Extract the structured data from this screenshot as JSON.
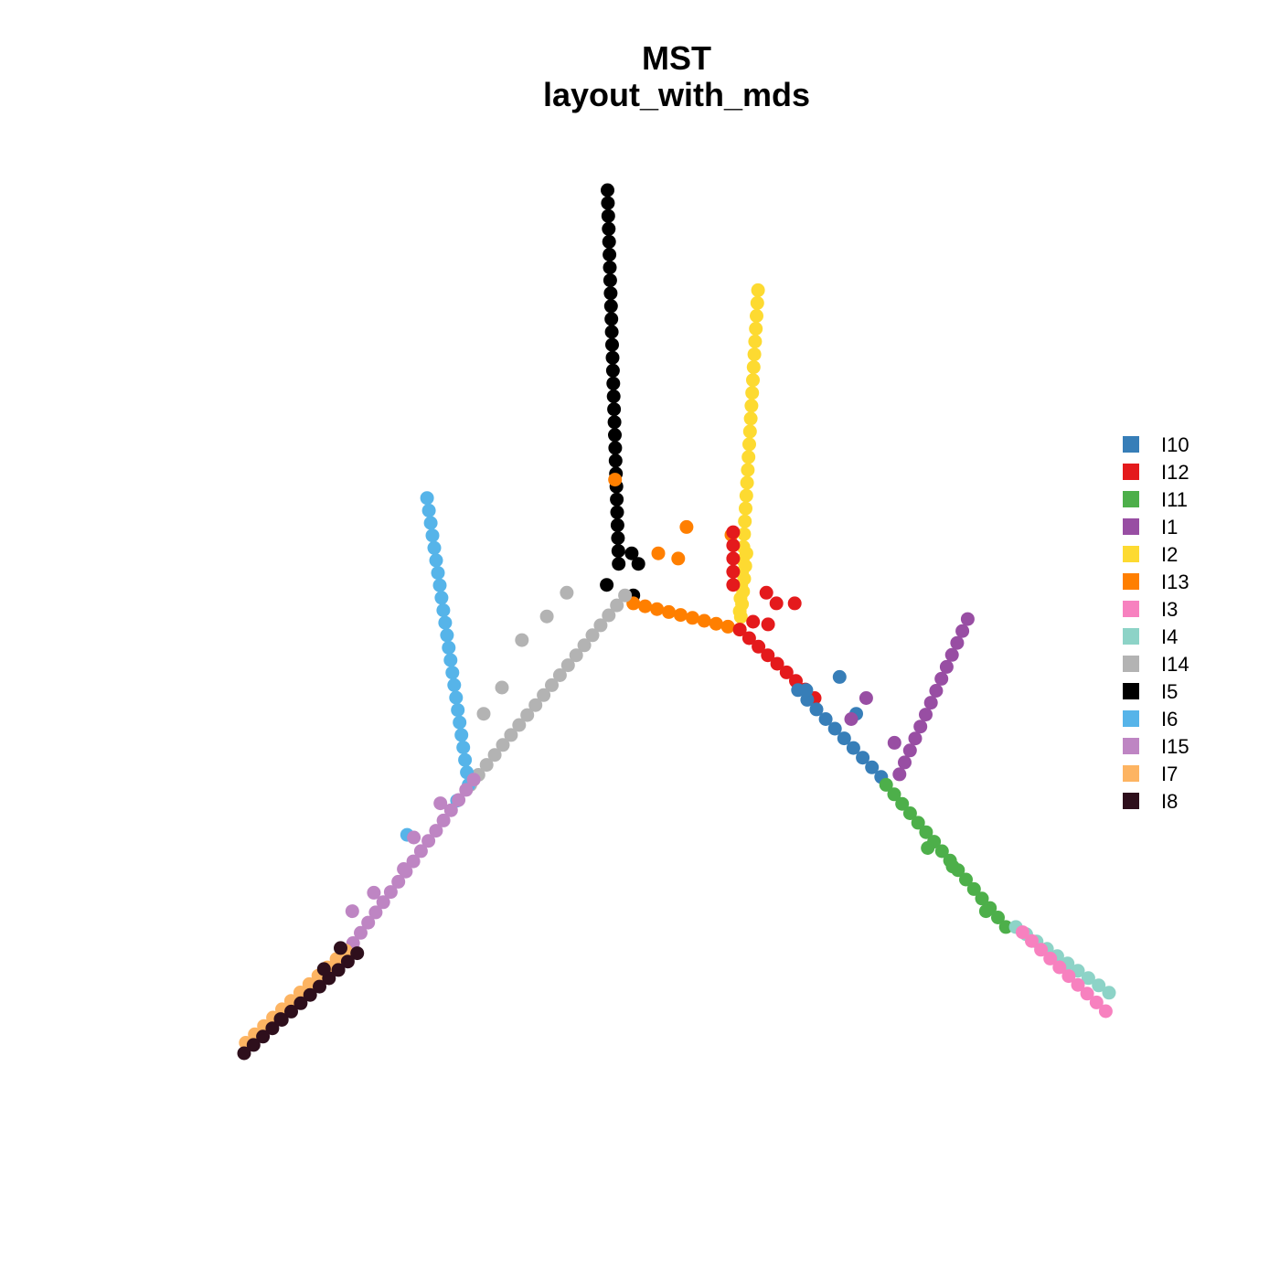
{
  "title_line1": "MST",
  "title_line2": "layout_with_mds",
  "chart_data": {
    "type": "scatter",
    "title": "MST layout_with_mds",
    "axes_visible": false,
    "grid": false,
    "legend_position": "right",
    "legend": [
      {
        "label": "I10",
        "color": "#377EB8"
      },
      {
        "label": "I12",
        "color": "#E41A1C"
      },
      {
        "label": "I11",
        "color": "#4DAF4A"
      },
      {
        "label": "I1",
        "color": "#984EA3"
      },
      {
        "label": "I2",
        "color": "#FDDA31"
      },
      {
        "label": "I13",
        "color": "#FF7F00"
      },
      {
        "label": "I3",
        "color": "#F781BF"
      },
      {
        "label": "I4",
        "color": "#8DD3C7"
      },
      {
        "label": "I14",
        "color": "#B3B3B3"
      },
      {
        "label": "I5",
        "color": "#000000"
      },
      {
        "label": "I6",
        "color": "#56B4E9"
      },
      {
        "label": "I15",
        "color": "#BE85C3"
      },
      {
        "label": "I7",
        "color": "#FDB462"
      },
      {
        "label": "I8",
        "color": "#2E0F1C"
      }
    ],
    "edge_color": "#BEBEBE",
    "series": [
      {
        "label": "I5",
        "segments": [
          [
            [
              -0.095,
              1.9
            ],
            [
              -0.028,
              0.48
            ]
          ]
        ],
        "branch_points": [
          [
            -0.1,
            0.4
          ],
          [
            0.06,
            0.36
          ],
          [
            0.09,
            0.48
          ],
          [
            0.05,
            0.52
          ]
        ]
      },
      {
        "label": "I2",
        "segments": [
          [
            [
              0.81,
              1.52
            ],
            [
              0.7,
              0.3
            ]
          ],
          [
            [
              0.74,
              0.52
            ],
            [
              0.7,
              0.23
            ]
          ]
        ]
      },
      {
        "label": "I13",
        "segments": [
          [
            [
              0.06,
              0.33
            ],
            [
              0.7,
              0.23
            ]
          ]
        ],
        "branch_points": [
          [
            0.38,
            0.62
          ],
          [
            0.21,
            0.52
          ],
          [
            0.65,
            0.59
          ],
          [
            -0.05,
            0.8
          ],
          [
            0.33,
            0.5
          ]
        ]
      },
      {
        "label": "I12",
        "segments": [
          [
            [
              0.7,
              0.23
            ],
            [
              1.15,
              -0.03
            ]
          ],
          [
            [
              0.66,
              0.6
            ],
            [
              0.66,
              0.4
            ]
          ]
        ],
        "branch_points": [
          [
            0.86,
            0.37
          ],
          [
            0.92,
            0.33
          ],
          [
            1.03,
            0.33
          ],
          [
            0.78,
            0.26
          ],
          [
            0.87,
            0.25
          ]
        ]
      },
      {
        "label": "I10",
        "segments": [
          [
            [
              1.05,
              0.0
            ],
            [
              1.55,
              -0.33
            ]
          ]
        ],
        "branch_points": [
          [
            1.3,
            0.05
          ],
          [
            1.1,
            0.0
          ],
          [
            1.4,
            -0.09
          ]
        ]
      },
      {
        "label": "I1",
        "segments": [
          [
            [
              1.66,
              -0.32
            ],
            [
              2.07,
              0.27
            ]
          ]
        ],
        "branch_points": [
          [
            1.46,
            -0.03
          ],
          [
            1.37,
            -0.11
          ],
          [
            1.63,
            -0.2
          ]
        ]
      },
      {
        "label": "I11",
        "segments": [
          [
            [
              1.58,
              -0.36
            ],
            [
              2.3,
              -0.9
            ]
          ]
        ],
        "branch_points": [
          [
            1.83,
            -0.6
          ],
          [
            1.98,
            -0.67
          ],
          [
            2.18,
            -0.84
          ]
        ]
      },
      {
        "label": "I4",
        "segments": [
          [
            [
              2.36,
              -0.9
            ],
            [
              2.92,
              -1.15
            ]
          ]
        ]
      },
      {
        "label": "I3",
        "segments": [
          [
            [
              2.4,
              -0.92
            ],
            [
              2.9,
              -1.22
            ]
          ]
        ]
      },
      {
        "label": "I14",
        "segments": [
          [
            [
              0.01,
              0.36
            ],
            [
              -0.92,
              -0.36
            ]
          ]
        ],
        "branch_points": [
          [
            -0.61,
            0.19
          ],
          [
            -0.73,
            0.01
          ],
          [
            -0.84,
            -0.09
          ],
          [
            -0.46,
            0.28
          ],
          [
            -0.34,
            0.37
          ]
        ]
      },
      {
        "label": "I6",
        "segments": [
          [
            [
              -1.18,
              0.73
            ],
            [
              -0.93,
              -0.36
            ]
          ]
        ],
        "branch_points": [
          [
            -1.3,
            -0.55
          ],
          [
            -1.0,
            -0.42
          ]
        ]
      },
      {
        "label": "I15",
        "segments": [
          [
            [
              -0.9,
              -0.34
            ],
            [
              -1.67,
              -1.0
            ]
          ]
        ],
        "branch_points": [
          [
            -1.1,
            -0.43
          ],
          [
            -1.26,
            -0.56
          ],
          [
            -1.5,
            -0.77
          ],
          [
            -1.63,
            -0.84
          ],
          [
            -1.32,
            -0.68
          ]
        ]
      },
      {
        "label": "I7",
        "segments": [
          [
            [
              -1.67,
              -0.99
            ],
            [
              -2.27,
              -1.34
            ]
          ]
        ]
      },
      {
        "label": "I8",
        "segments": [
          [
            [
              -1.6,
              -1.0
            ],
            [
              -2.28,
              -1.38
            ]
          ]
        ],
        "branch_points": [
          [
            -1.7,
            -0.98
          ],
          [
            -1.8,
            -1.06
          ],
          [
            -2.06,
            -1.25
          ]
        ]
      }
    ],
    "xlim": [
      -2.35,
      3.0
    ],
    "ylim": [
      -1.5,
      1.95
    ]
  }
}
